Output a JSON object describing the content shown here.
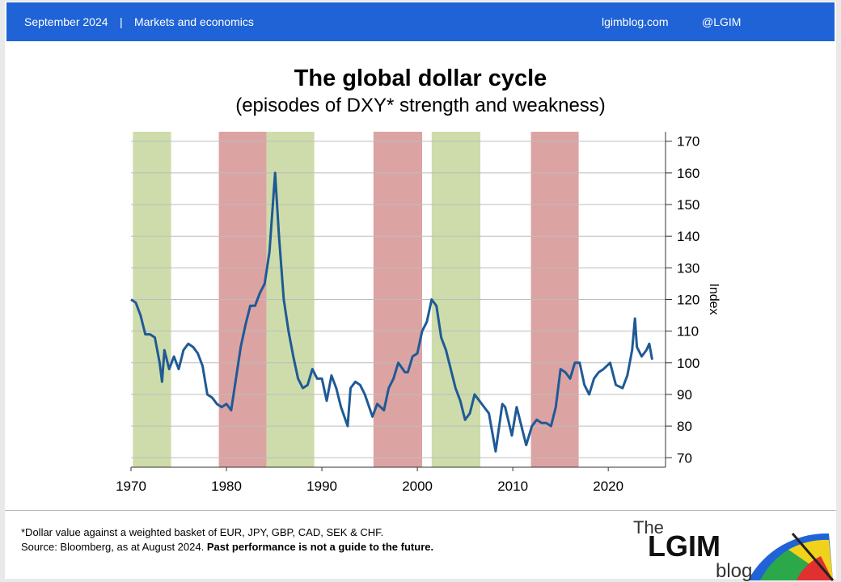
{
  "header": {
    "date": "September 2024",
    "separator": "|",
    "section": "Markets and economics",
    "site": "lgimblog.com",
    "handle": "@LGIM"
  },
  "chart_data": {
    "type": "line",
    "title": "The global dollar cycle",
    "subtitle": "(episodes of DXY* strength and weakness)",
    "y_label": "Index",
    "color": "#1f5a96",
    "x": [
      1970,
      1970.5,
      1971,
      1971.5,
      1972,
      1972.5,
      1973,
      1973.25,
      1973.5,
      1974,
      1974.5,
      1975,
      1975.5,
      1976,
      1976.5,
      1977,
      1977.5,
      1978,
      1978.5,
      1979,
      1979.5,
      1980,
      1980.5,
      1981,
      1981.5,
      1982,
      1982.5,
      1983,
      1983.5,
      1984,
      1984.5,
      1985.1,
      1985.5,
      1986,
      1986.5,
      1987,
      1987.5,
      1988,
      1988.5,
      1989,
      1989.5,
      1990,
      1990.5,
      1991,
      1991.5,
      1992,
      1992.7,
      1993,
      1993.5,
      1994,
      1994.5,
      1995.3,
      1995.8,
      1996.5,
      1997,
      1997.5,
      1998,
      1998.7,
      1999,
      1999.5,
      2000,
      2000.5,
      2001,
      2001.5,
      2002,
      2002.5,
      2003,
      2003.5,
      2004,
      2004.5,
      2005,
      2005.5,
      2006,
      2006.5,
      2007,
      2007.5,
      2008.2,
      2008.9,
      2009.2,
      2009.9,
      2010.4,
      2010.9,
      2011.4,
      2012,
      2012.5,
      2013,
      2013.5,
      2014,
      2014.5,
      2015,
      2015.5,
      2016,
      2016.5,
      2017,
      2017.5,
      2018,
      2018.5,
      2019,
      2019.5,
      2020.2,
      2020.8,
      2021.5,
      2022,
      2022.5,
      2022.8,
      2023,
      2023.5,
      2024,
      2024.3,
      2024.6
    ],
    "values": [
      120,
      119,
      115,
      109,
      109,
      108,
      100,
      94,
      104,
      98,
      102,
      98,
      104,
      106,
      105,
      103,
      99,
      90,
      89,
      87,
      86,
      87,
      85,
      95,
      105,
      112,
      118,
      118,
      122,
      125,
      135,
      160,
      140,
      120,
      110,
      102,
      95,
      92,
      93,
      98,
      95,
      95,
      88,
      96,
      92,
      86,
      80,
      92,
      94,
      93,
      90,
      83,
      87,
      85,
      92,
      95,
      100,
      97,
      97,
      102,
      103,
      110,
      113,
      120,
      118,
      108,
      104,
      98,
      92,
      88,
      82,
      84,
      90,
      88,
      86,
      84,
      72,
      87,
      86,
      77,
      86,
      80,
      74,
      80,
      82,
      81,
      81,
      80,
      86,
      98,
      97,
      95,
      100,
      100,
      93,
      90,
      95,
      97,
      98,
      100,
      93,
      92,
      96,
      104,
      114,
      105,
      102,
      104,
      106,
      101
    ],
    "bands": [
      {
        "from": 1970.2,
        "to": 1974.2,
        "color": "#cddcaa"
      },
      {
        "from": 1979.2,
        "to": 1984.2,
        "color": "#dca3a3"
      },
      {
        "from": 1984.2,
        "to": 1989.2,
        "color": "#cddcaa"
      },
      {
        "from": 1995.4,
        "to": 2000.5,
        "color": "#dca3a3"
      },
      {
        "from": 2001.5,
        "to": 2006.6,
        "color": "#cddcaa"
      },
      {
        "from": 2011.9,
        "to": 2016.9,
        "color": "#dca3a3"
      }
    ],
    "xlim": [
      1970,
      2026
    ],
    "xticks": [
      1970,
      1980,
      1990,
      2000,
      2010,
      2020
    ],
    "ylim": [
      67,
      173
    ],
    "yticks": [
      70,
      80,
      90,
      100,
      110,
      120,
      130,
      140,
      150,
      160,
      170
    ],
    "grid": true
  },
  "footer": {
    "note": "*Dollar value against a weighted basket of EUR, JPY, GBP, CAD, SEK & CHF.",
    "source": "Source: Bloomberg, as at August 2024.",
    "disclaimer": "Past performance is not a guide to the future.",
    "logo": {
      "top": "The",
      "main": "LGIM",
      "bottom": "blog"
    }
  }
}
